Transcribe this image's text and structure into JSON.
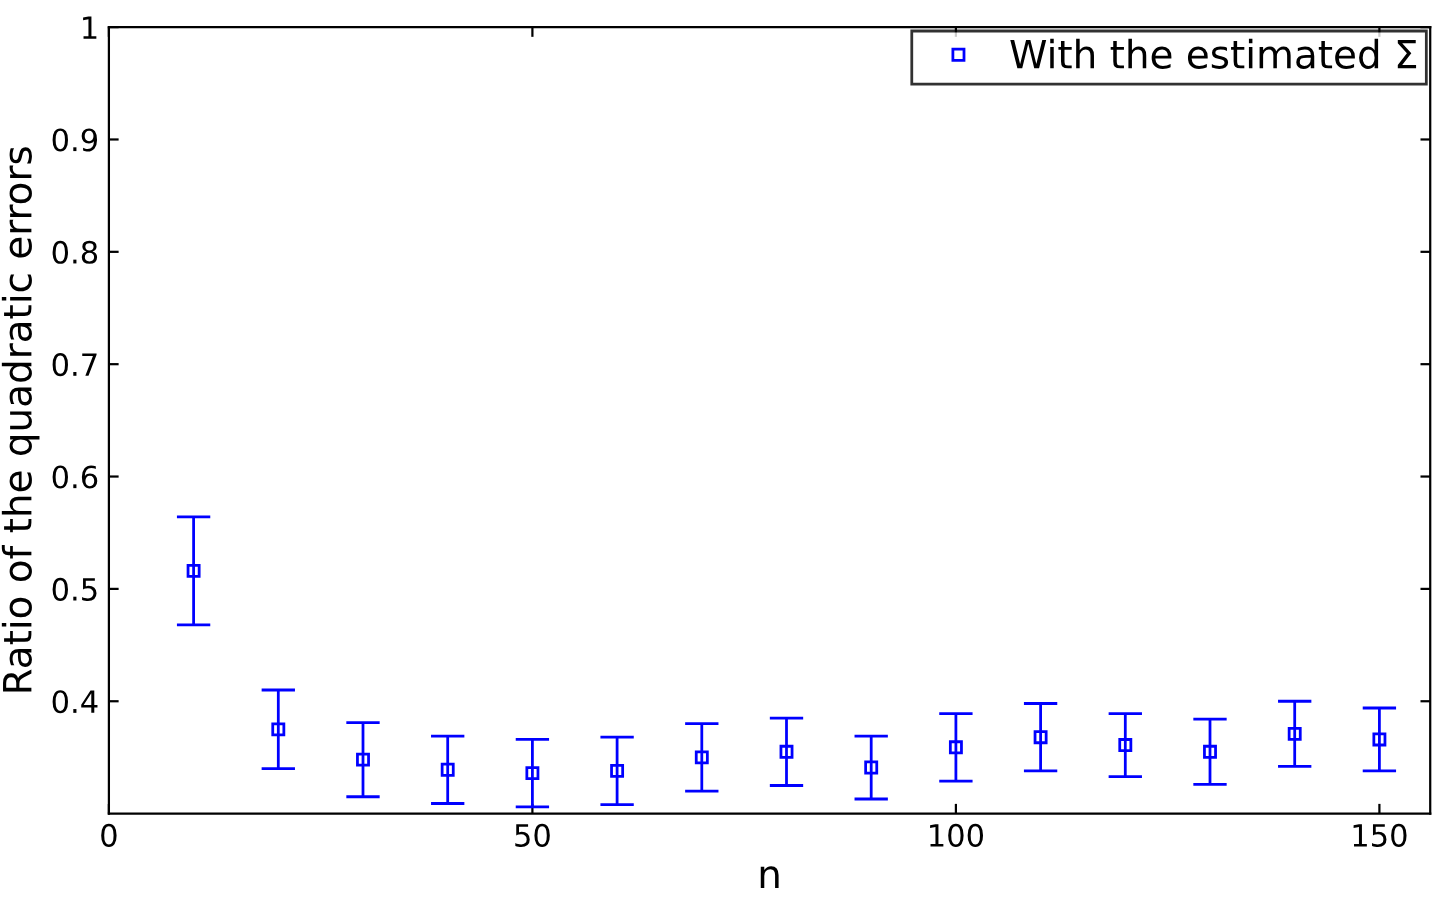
{
  "chart_data": {
    "type": "scatter",
    "xlabel": "n",
    "ylabel": "Ratio of the quadratic errors",
    "x": [
      10,
      20,
      30,
      40,
      50,
      60,
      70,
      80,
      90,
      100,
      110,
      120,
      130,
      140,
      150
    ],
    "series": [
      {
        "name": "With the estimated Σ",
        "color": "#0000ff",
        "values": [
          0.516,
          0.375,
          0.348,
          0.339,
          0.336,
          0.338,
          0.35,
          0.355,
          0.341,
          0.359,
          0.368,
          0.361,
          0.355,
          0.371,
          0.366
        ],
        "errors": [
          0.048,
          0.035,
          0.033,
          0.03,
          0.03,
          0.03,
          0.03,
          0.03,
          0.028,
          0.03,
          0.03,
          0.028,
          0.029,
          0.029,
          0.028
        ]
      }
    ],
    "xlim": [
      0,
      156
    ],
    "ylim": [
      0.3,
      1
    ],
    "xticks": [
      0,
      50,
      100,
      150
    ],
    "yticks": [
      0.4,
      0.5,
      0.6,
      0.7,
      0.8,
      0.9,
      1
    ],
    "marker": "square",
    "grid": false,
    "legend": "top right"
  }
}
